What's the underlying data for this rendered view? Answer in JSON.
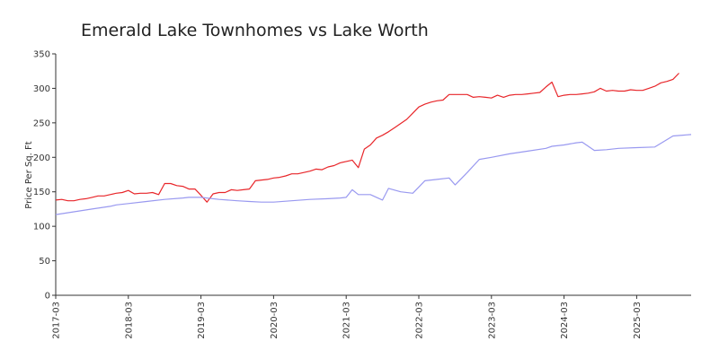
{
  "chart_data": {
    "type": "line",
    "title": "Emerald Lake Townhomes vs Lake Worth",
    "xlabel": "",
    "ylabel": "Price Per Sq. Ft",
    "ylim": [
      0,
      350
    ],
    "yticks": [
      0,
      50,
      100,
      150,
      200,
      250,
      300,
      350
    ],
    "xticks": [
      "2017-03",
      "2018-03",
      "2019-03",
      "2020-03",
      "2021-03",
      "2022-03",
      "2023-03",
      "2024-03",
      "2025-03"
    ],
    "xlim": [
      "2017-03",
      "2025-12"
    ],
    "grid": false,
    "legend": "none",
    "series": [
      {
        "color": "#e8262a",
        "points": [
          [
            "2017-03",
            138
          ],
          [
            "2017-04",
            139
          ],
          [
            "2017-05",
            137
          ],
          [
            "2017-06",
            137
          ],
          [
            "2017-07",
            139
          ],
          [
            "2017-08",
            140
          ],
          [
            "2017-09",
            142
          ],
          [
            "2017-10",
            144
          ],
          [
            "2017-11",
            144
          ],
          [
            "2017-12",
            146
          ],
          [
            "2018-01",
            148
          ],
          [
            "2018-02",
            149
          ],
          [
            "2018-03",
            152
          ],
          [
            "2018-04",
            147
          ],
          [
            "2018-05",
            148
          ],
          [
            "2018-06",
            148
          ],
          [
            "2018-07",
            149
          ],
          [
            "2018-08",
            146
          ],
          [
            "2018-09",
            162
          ],
          [
            "2018-10",
            162
          ],
          [
            "2018-11",
            159
          ],
          [
            "2018-12",
            158
          ],
          [
            "2019-01",
            154
          ],
          [
            "2019-02",
            154
          ],
          [
            "2019-03",
            145
          ],
          [
            "2019-04",
            135
          ],
          [
            "2019-05",
            147
          ],
          [
            "2019-06",
            149
          ],
          [
            "2019-07",
            149
          ],
          [
            "2019-08",
            153
          ],
          [
            "2019-09",
            152
          ],
          [
            "2019-10",
            153
          ],
          [
            "2019-11",
            154
          ],
          [
            "2019-12",
            166
          ],
          [
            "2020-01",
            167
          ],
          [
            "2020-02",
            168
          ],
          [
            "2020-03",
            170
          ],
          [
            "2020-04",
            171
          ],
          [
            "2020-05",
            173
          ],
          [
            "2020-06",
            176
          ],
          [
            "2020-07",
            176
          ],
          [
            "2020-08",
            178
          ],
          [
            "2020-09",
            180
          ],
          [
            "2020-10",
            183
          ],
          [
            "2020-11",
            182
          ],
          [
            "2020-12",
            186
          ],
          [
            "2021-01",
            188
          ],
          [
            "2021-02",
            192
          ],
          [
            "2021-03",
            194
          ],
          [
            "2021-04",
            196
          ],
          [
            "2021-05",
            185
          ],
          [
            "2021-06",
            212
          ],
          [
            "2021-07",
            218
          ],
          [
            "2021-08",
            228
          ],
          [
            "2021-09",
            232
          ],
          [
            "2021-10",
            237
          ],
          [
            "2021-11",
            243
          ],
          [
            "2021-12",
            249
          ],
          [
            "2022-01",
            255
          ],
          [
            "2022-02",
            264
          ],
          [
            "2022-03",
            273
          ],
          [
            "2022-04",
            277
          ],
          [
            "2022-05",
            280
          ],
          [
            "2022-06",
            282
          ],
          [
            "2022-07",
            283
          ],
          [
            "2022-08",
            291
          ],
          [
            "2022-09",
            291
          ],
          [
            "2022-10",
            291
          ],
          [
            "2022-11",
            291
          ],
          [
            "2022-12",
            287
          ],
          [
            "2023-01",
            288
          ],
          [
            "2023-02",
            287
          ],
          [
            "2023-03",
            286
          ],
          [
            "2023-04",
            290
          ],
          [
            "2023-05",
            287
          ],
          [
            "2023-06",
            290
          ],
          [
            "2023-07",
            291
          ],
          [
            "2023-08",
            291
          ],
          [
            "2023-09",
            292
          ],
          [
            "2023-10",
            293
          ],
          [
            "2023-11",
            294
          ],
          [
            "2023-12",
            302
          ],
          [
            "2024-01",
            309
          ],
          [
            "2024-02",
            288
          ],
          [
            "2024-03",
            290
          ],
          [
            "2024-04",
            291
          ],
          [
            "2024-05",
            291
          ],
          [
            "2024-06",
            292
          ],
          [
            "2024-07",
            293
          ],
          [
            "2024-08",
            295
          ],
          [
            "2024-09",
            300
          ],
          [
            "2024-10",
            296
          ],
          [
            "2024-11",
            297
          ],
          [
            "2024-12",
            296
          ],
          [
            "2025-01",
            296
          ],
          [
            "2025-02",
            298
          ],
          [
            "2025-03",
            297
          ],
          [
            "2025-04",
            297
          ],
          [
            "2025-05",
            300
          ],
          [
            "2025-06",
            303
          ],
          [
            "2025-07",
            308
          ],
          [
            "2025-08",
            310
          ],
          [
            "2025-09",
            313
          ],
          [
            "2025-10",
            322
          ]
        ]
      },
      {
        "color": "#9999f0",
        "points": [
          [
            "2017-03",
            117
          ],
          [
            "2017-06",
            121
          ],
          [
            "2017-09",
            125
          ],
          [
            "2017-12",
            129
          ],
          [
            "2018-01",
            131
          ],
          [
            "2018-03",
            133
          ],
          [
            "2018-06",
            136
          ],
          [
            "2018-09",
            139
          ],
          [
            "2018-12",
            141
          ],
          [
            "2019-01",
            142
          ],
          [
            "2019-03",
            142
          ],
          [
            "2019-06",
            139
          ],
          [
            "2019-09",
            137
          ],
          [
            "2019-11",
            136
          ],
          [
            "2020-01",
            135
          ],
          [
            "2020-03",
            135
          ],
          [
            "2020-06",
            137
          ],
          [
            "2020-09",
            139
          ],
          [
            "2020-12",
            140
          ],
          [
            "2021-02",
            141
          ],
          [
            "2021-03",
            142
          ],
          [
            "2021-04",
            153
          ],
          [
            "2021-05",
            146
          ],
          [
            "2021-07",
            146
          ],
          [
            "2021-09",
            138
          ],
          [
            "2021-10",
            155
          ],
          [
            "2021-12",
            150
          ],
          [
            "2022-02",
            148
          ],
          [
            "2022-04",
            166
          ],
          [
            "2022-06",
            168
          ],
          [
            "2022-08",
            170
          ],
          [
            "2022-09",
            160
          ],
          [
            "2022-11",
            178
          ],
          [
            "2023-01",
            197
          ],
          [
            "2023-03",
            200
          ],
          [
            "2023-06",
            205
          ],
          [
            "2023-09",
            209
          ],
          [
            "2023-12",
            213
          ],
          [
            "2024-01",
            216
          ],
          [
            "2024-03",
            218
          ],
          [
            "2024-05",
            221
          ],
          [
            "2024-06",
            222
          ],
          [
            "2024-08",
            210
          ],
          [
            "2024-10",
            211
          ],
          [
            "2024-12",
            213
          ],
          [
            "2025-03",
            214
          ],
          [
            "2025-06",
            215
          ],
          [
            "2025-09",
            231
          ],
          [
            "2025-12",
            233
          ]
        ]
      }
    ]
  }
}
